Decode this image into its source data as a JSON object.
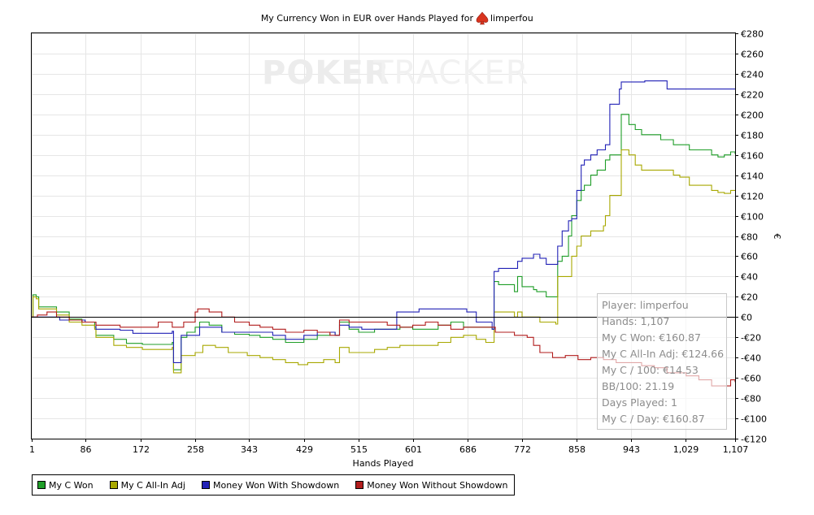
{
  "chart_data": {
    "type": "line",
    "title": "My Currency Won in EUR over Hands Played for",
    "player_name": "limperfou",
    "watermark": {
      "left": "POKER",
      "right": "TRACKER"
    },
    "xlabel": "Hands Played",
    "ylabel": "€",
    "xlim": [
      1,
      1107
    ],
    "ylim": [
      -120,
      280
    ],
    "x_ticks": [
      1,
      86,
      172,
      258,
      343,
      429,
      515,
      601,
      686,
      772,
      858,
      943,
      1029,
      1107
    ],
    "x_tick_labels": [
      "1",
      "86",
      "172",
      "258",
      "343",
      "429",
      "515",
      "601",
      "686",
      "772",
      "858",
      "943",
      "1,029",
      "1,107"
    ],
    "y_ticks": [
      -120,
      -100,
      -80,
      -60,
      -40,
      -20,
      0,
      20,
      40,
      60,
      80,
      100,
      120,
      140,
      160,
      180,
      200,
      220,
      240,
      260,
      280
    ],
    "y_tick_labels": [
      "-€120",
      "-€100",
      "-€80",
      "-€60",
      "-€40",
      "-€20",
      "€0",
      "€20",
      "€40",
      "€60",
      "€80",
      "€100",
      "€120",
      "€140",
      "€160",
      "€180",
      "€200",
      "€220",
      "€240",
      "€260",
      "€280"
    ],
    "grid": true,
    "legend_position": "bottom-left",
    "series": [
      {
        "name": "My C Won",
        "color": "#1f9e28",
        "points": [
          [
            1,
            0
          ],
          [
            3,
            22
          ],
          [
            8,
            20
          ],
          [
            12,
            10
          ],
          [
            25,
            10
          ],
          [
            40,
            5
          ],
          [
            60,
            -2
          ],
          [
            80,
            -5
          ],
          [
            100,
            -10
          ],
          [
            102,
            -18
          ],
          [
            130,
            -22
          ],
          [
            150,
            -26
          ],
          [
            175,
            -27
          ],
          [
            205,
            -27
          ],
          [
            222,
            -25
          ],
          [
            224,
            -52
          ],
          [
            234,
            -52
          ],
          [
            236,
            -20
          ],
          [
            245,
            -15
          ],
          [
            258,
            -10
          ],
          [
            265,
            -5
          ],
          [
            280,
            -8
          ],
          [
            300,
            -15
          ],
          [
            320,
            -17
          ],
          [
            343,
            -18
          ],
          [
            360,
            -20
          ],
          [
            380,
            -22
          ],
          [
            400,
            -25
          ],
          [
            420,
            -25
          ],
          [
            429,
            -22
          ],
          [
            450,
            -18
          ],
          [
            470,
            -15
          ],
          [
            478,
            -18
          ],
          [
            485,
            -5
          ],
          [
            500,
            -12
          ],
          [
            515,
            -15
          ],
          [
            540,
            -12
          ],
          [
            560,
            -12
          ],
          [
            580,
            -10
          ],
          [
            600,
            -12
          ],
          [
            620,
            -12
          ],
          [
            640,
            -8
          ],
          [
            660,
            -5
          ],
          [
            680,
            -10
          ],
          [
            700,
            -10
          ],
          [
            725,
            -12
          ],
          [
            728,
            35
          ],
          [
            735,
            32
          ],
          [
            760,
            25
          ],
          [
            765,
            40
          ],
          [
            772,
            30
          ],
          [
            790,
            27
          ],
          [
            795,
            25
          ],
          [
            810,
            20
          ],
          [
            825,
            20
          ],
          [
            828,
            55
          ],
          [
            835,
            60
          ],
          [
            845,
            80
          ],
          [
            850,
            100
          ],
          [
            858,
            115
          ],
          [
            865,
            125
          ],
          [
            870,
            130
          ],
          [
            880,
            140
          ],
          [
            890,
            145
          ],
          [
            900,
            145
          ],
          [
            903,
            155
          ],
          [
            910,
            160
          ],
          [
            925,
            160
          ],
          [
            928,
            200
          ],
          [
            940,
            190
          ],
          [
            950,
            185
          ],
          [
            960,
            180
          ],
          [
            975,
            180
          ],
          [
            990,
            175
          ],
          [
            1000,
            175
          ],
          [
            1010,
            170
          ],
          [
            1020,
            170
          ],
          [
            1035,
            165
          ],
          [
            1045,
            165
          ],
          [
            1060,
            165
          ],
          [
            1070,
            160
          ],
          [
            1080,
            158
          ],
          [
            1090,
            160
          ],
          [
            1100,
            163
          ],
          [
            1107,
            160.87
          ]
        ]
      },
      {
        "name": "My C All-In Adj",
        "color": "#a8a800",
        "points": [
          [
            1,
            0
          ],
          [
            3,
            20
          ],
          [
            8,
            18
          ],
          [
            12,
            8
          ],
          [
            25,
            8
          ],
          [
            40,
            2
          ],
          [
            60,
            -5
          ],
          [
            80,
            -8
          ],
          [
            100,
            -12
          ],
          [
            102,
            -20
          ],
          [
            130,
            -28
          ],
          [
            150,
            -30
          ],
          [
            175,
            -32
          ],
          [
            205,
            -32
          ],
          [
            222,
            -30
          ],
          [
            224,
            -55
          ],
          [
            234,
            -55
          ],
          [
            236,
            -38
          ],
          [
            258,
            -35
          ],
          [
            270,
            -28
          ],
          [
            290,
            -30
          ],
          [
            310,
            -35
          ],
          [
            340,
            -38
          ],
          [
            360,
            -40
          ],
          [
            380,
            -42
          ],
          [
            400,
            -45
          ],
          [
            420,
            -47
          ],
          [
            435,
            -45
          ],
          [
            460,
            -42
          ],
          [
            478,
            -45
          ],
          [
            485,
            -30
          ],
          [
            500,
            -35
          ],
          [
            520,
            -35
          ],
          [
            540,
            -32
          ],
          [
            560,
            -30
          ],
          [
            580,
            -28
          ],
          [
            600,
            -28
          ],
          [
            620,
            -28
          ],
          [
            640,
            -25
          ],
          [
            660,
            -20
          ],
          [
            680,
            -18
          ],
          [
            700,
            -22
          ],
          [
            715,
            -25
          ],
          [
            725,
            -25
          ],
          [
            728,
            5
          ],
          [
            740,
            5
          ],
          [
            760,
            0
          ],
          [
            765,
            5
          ],
          [
            772,
            0
          ],
          [
            800,
            -5
          ],
          [
            825,
            -7
          ],
          [
            828,
            40
          ],
          [
            835,
            40
          ],
          [
            845,
            40
          ],
          [
            850,
            60
          ],
          [
            858,
            70
          ],
          [
            865,
            80
          ],
          [
            870,
            80
          ],
          [
            880,
            85
          ],
          [
            890,
            85
          ],
          [
            900,
            90
          ],
          [
            903,
            100
          ],
          [
            910,
            120
          ],
          [
            925,
            120
          ],
          [
            928,
            165
          ],
          [
            940,
            160
          ],
          [
            950,
            150
          ],
          [
            960,
            145
          ],
          [
            980,
            145
          ],
          [
            1000,
            145
          ],
          [
            1010,
            140
          ],
          [
            1020,
            138
          ],
          [
            1035,
            130
          ],
          [
            1050,
            130
          ],
          [
            1070,
            125
          ],
          [
            1080,
            123
          ],
          [
            1090,
            122
          ],
          [
            1100,
            125
          ],
          [
            1107,
            124.66
          ]
        ]
      },
      {
        "name": "Money Won With Showdown",
        "color": "#2121b6",
        "points": [
          [
            1,
            0
          ],
          [
            3,
            0
          ],
          [
            40,
            0
          ],
          [
            45,
            -3
          ],
          [
            85,
            -5
          ],
          [
            102,
            -12
          ],
          [
            140,
            -13
          ],
          [
            160,
            -16
          ],
          [
            222,
            -14
          ],
          [
            224,
            -45
          ],
          [
            234,
            -45
          ],
          [
            236,
            -18
          ],
          [
            258,
            -18
          ],
          [
            265,
            -10
          ],
          [
            300,
            -15
          ],
          [
            343,
            -15
          ],
          [
            360,
            -15
          ],
          [
            380,
            -18
          ],
          [
            400,
            -22
          ],
          [
            420,
            -22
          ],
          [
            429,
            -18
          ],
          [
            450,
            -15
          ],
          [
            470,
            -15
          ],
          [
            478,
            -18
          ],
          [
            485,
            -8
          ],
          [
            500,
            -10
          ],
          [
            520,
            -12
          ],
          [
            560,
            -12
          ],
          [
            575,
            5
          ],
          [
            580,
            5
          ],
          [
            600,
            5
          ],
          [
            610,
            8
          ],
          [
            660,
            8
          ],
          [
            685,
            5
          ],
          [
            700,
            -5
          ],
          [
            725,
            -12
          ],
          [
            728,
            45
          ],
          [
            735,
            48
          ],
          [
            760,
            48
          ],
          [
            765,
            55
          ],
          [
            772,
            58
          ],
          [
            790,
            62
          ],
          [
            800,
            58
          ],
          [
            810,
            52
          ],
          [
            825,
            52
          ],
          [
            828,
            70
          ],
          [
            835,
            85
          ],
          [
            845,
            95
          ],
          [
            850,
            97
          ],
          [
            858,
            125
          ],
          [
            865,
            150
          ],
          [
            870,
            155
          ],
          [
            880,
            160
          ],
          [
            890,
            165
          ],
          [
            900,
            165
          ],
          [
            903,
            170
          ],
          [
            910,
            210
          ],
          [
            925,
            225
          ],
          [
            928,
            232
          ],
          [
            950,
            232
          ],
          [
            965,
            233
          ],
          [
            990,
            233
          ],
          [
            1000,
            225
          ],
          [
            1050,
            225
          ],
          [
            1107,
            225
          ]
        ]
      },
      {
        "name": "Money Won Without Showdown",
        "color": "#b11c1c",
        "points": [
          [
            1,
            0
          ],
          [
            10,
            2
          ],
          [
            25,
            5
          ],
          [
            40,
            0
          ],
          [
            60,
            -3
          ],
          [
            80,
            -5
          ],
          [
            102,
            -8
          ],
          [
            140,
            -10
          ],
          [
            170,
            -10
          ],
          [
            200,
            -5
          ],
          [
            222,
            -10
          ],
          [
            240,
            -5
          ],
          [
            255,
            -5
          ],
          [
            258,
            5
          ],
          [
            262,
            8
          ],
          [
            280,
            5
          ],
          [
            300,
            0
          ],
          [
            320,
            -5
          ],
          [
            343,
            -8
          ],
          [
            360,
            -10
          ],
          [
            380,
            -12
          ],
          [
            400,
            -15
          ],
          [
            420,
            -15
          ],
          [
            429,
            -13
          ],
          [
            450,
            -15
          ],
          [
            470,
            -18
          ],
          [
            478,
            -18
          ],
          [
            485,
            -3
          ],
          [
            500,
            -5
          ],
          [
            515,
            -5
          ],
          [
            540,
            -5
          ],
          [
            560,
            -8
          ],
          [
            580,
            -10
          ],
          [
            600,
            -8
          ],
          [
            620,
            -5
          ],
          [
            640,
            -8
          ],
          [
            660,
            -12
          ],
          [
            680,
            -10
          ],
          [
            700,
            -10
          ],
          [
            725,
            -10
          ],
          [
            730,
            -15
          ],
          [
            760,
            -18
          ],
          [
            780,
            -20
          ],
          [
            790,
            -28
          ],
          [
            800,
            -35
          ],
          [
            820,
            -40
          ],
          [
            840,
            -38
          ],
          [
            860,
            -42
          ],
          [
            880,
            -40
          ],
          [
            900,
            -42
          ],
          [
            920,
            -45
          ],
          [
            940,
            -45
          ],
          [
            960,
            -48
          ],
          [
            980,
            -50
          ],
          [
            1000,
            -55
          ],
          [
            1010,
            -55
          ],
          [
            1030,
            -58
          ],
          [
            1050,
            -62
          ],
          [
            1060,
            -62
          ],
          [
            1070,
            -68
          ],
          [
            1090,
            -68
          ],
          [
            1100,
            -62
          ],
          [
            1107,
            -64.21
          ]
        ]
      }
    ]
  },
  "tooltip": {
    "player": "Player: limperfou",
    "hands": "Hands: 1,107",
    "won": "My C Won: €160.87",
    "allin_adj": "My C All-In Adj: €124.66",
    "per100": "My C / 100: €14.53",
    "bb100": "BB/100: 21.19",
    "days": "Days Played: 1",
    "per_day": "My C / Day: €160.87"
  }
}
